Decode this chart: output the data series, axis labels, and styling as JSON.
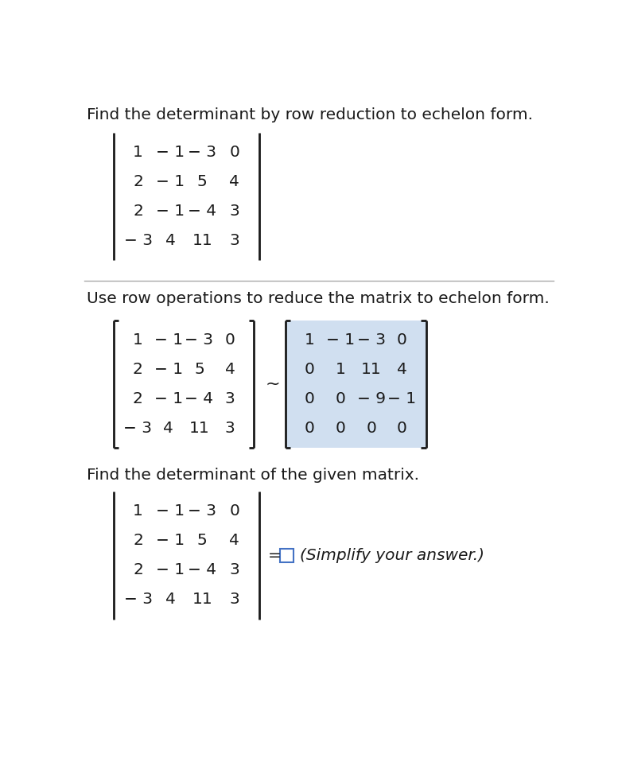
{
  "title1": "Find the determinant by row reduction to echelon form.",
  "title2": "Use row operations to reduce the matrix to echelon form.",
  "title3": "Find the determinant of the given matrix.",
  "matrix1": [
    [
      "1",
      "− 1",
      "− 3",
      "0"
    ],
    [
      "2",
      "− 1",
      "5",
      "4"
    ],
    [
      "2",
      "− 1",
      "− 4",
      "3"
    ],
    [
      "− 3",
      "4",
      "11",
      "3"
    ]
  ],
  "matrix2_left": [
    [
      "1",
      "− 1",
      "− 3",
      "0"
    ],
    [
      "2",
      "− 1",
      "5",
      "4"
    ],
    [
      "2",
      "− 1",
      "− 4",
      "3"
    ],
    [
      "− 3",
      "4",
      "11",
      "3"
    ]
  ],
  "matrix2_right": [
    [
      "1",
      "− 1",
      "− 3",
      "0"
    ],
    [
      "0",
      "1",
      "11",
      "4"
    ],
    [
      "0",
      "0",
      "− 9",
      "− 1"
    ],
    [
      "0",
      "0",
      "0",
      "0"
    ]
  ],
  "matrix3": [
    [
      "1",
      "− 1",
      "− 3",
      "0"
    ],
    [
      "2",
      "− 1",
      "5",
      "4"
    ],
    [
      "2",
      "− 1",
      "− 4",
      "3"
    ],
    [
      "− 3",
      "4",
      "11",
      "3"
    ]
  ],
  "bg_color": "#ffffff",
  "text_color": "#1a1a1a",
  "highlight_color": "#d0dff0",
  "font_size_title": 14.5,
  "font_size_matrix": 14.5,
  "simplify_text": "(Simplify your answer.)"
}
